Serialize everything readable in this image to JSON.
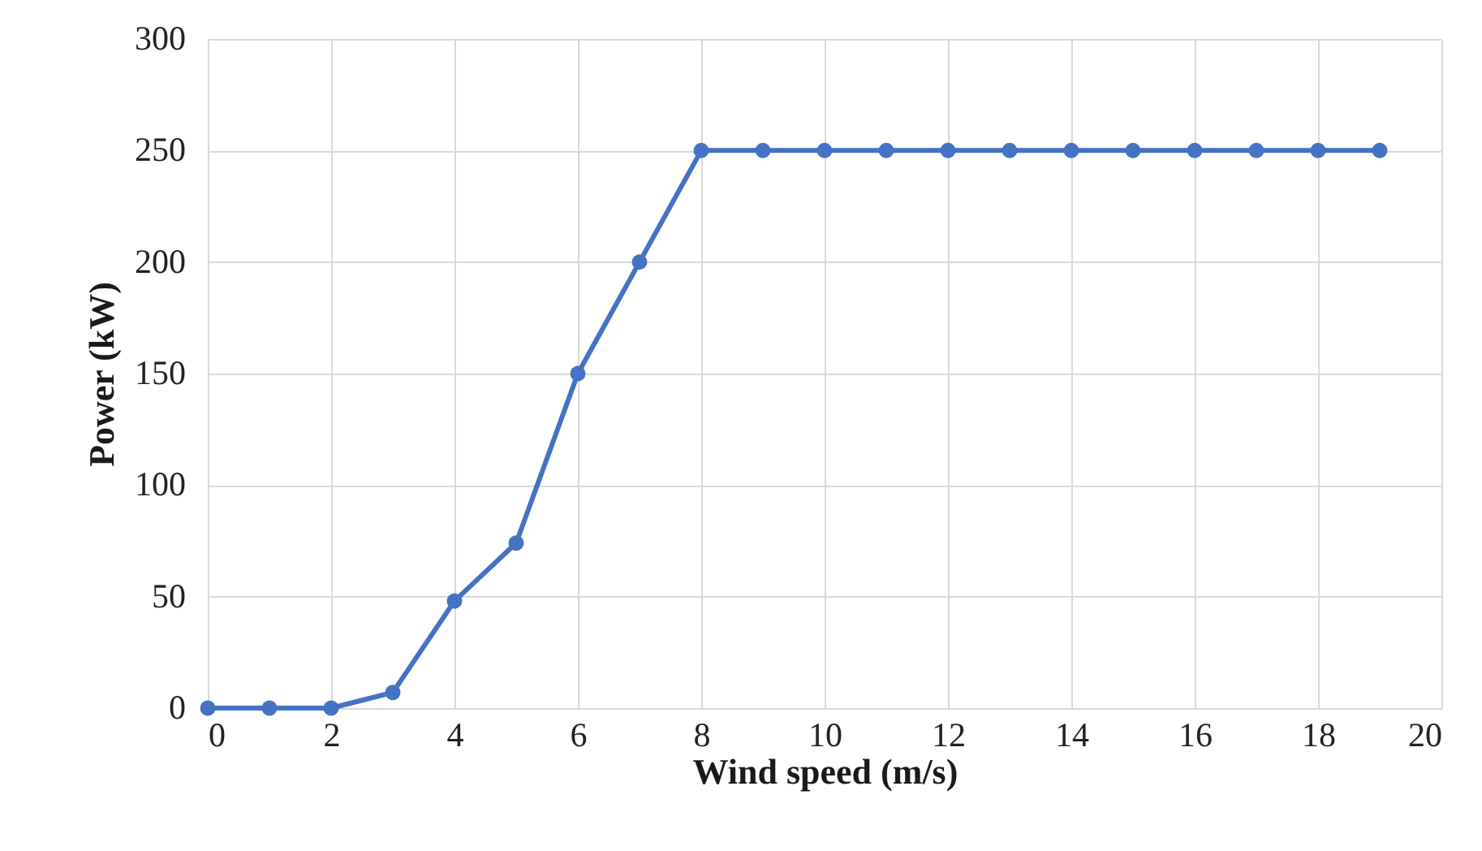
{
  "chart_data": {
    "type": "line",
    "xlabel": "Wind speed (m/s)",
    "ylabel": "Power (kW)",
    "x": [
      0,
      1,
      2,
      3,
      4,
      5,
      6,
      7,
      8,
      9,
      10,
      11,
      12,
      13,
      14,
      15,
      16,
      17,
      18,
      19
    ],
    "series": [
      {
        "color": "#4472c4",
        "values": [
          0,
          0,
          0,
          7,
          48,
          74,
          150,
          200,
          250,
          250,
          250,
          250,
          250,
          250,
          250,
          250,
          250,
          250,
          250,
          250
        ]
      }
    ],
    "xlim": [
      0,
      20
    ],
    "xticks": [
      0,
      2,
      4,
      6,
      8,
      10,
      12,
      14,
      16,
      18,
      20
    ],
    "ylim": [
      0,
      300
    ],
    "yticks": [
      0,
      50,
      100,
      150,
      200,
      250,
      300
    ],
    "grid": true,
    "marker": "circle",
    "line_style": "solid"
  }
}
